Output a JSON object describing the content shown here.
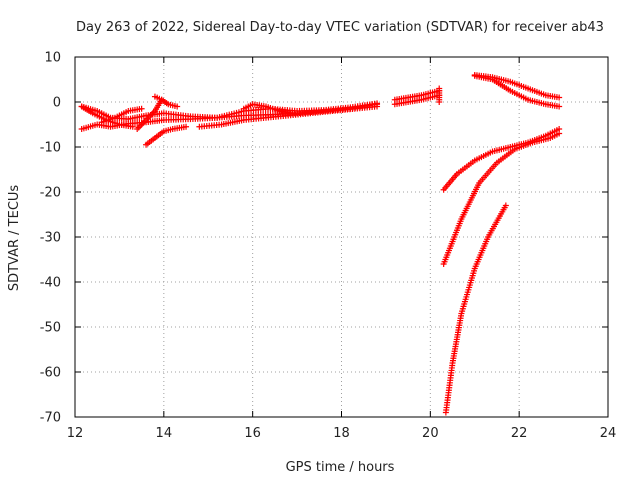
{
  "chart_data": {
    "type": "scatter",
    "title": "Day 263 of 2022, Sidereal Day-to-day VTEC variation (SDTVAR) for receiver ab43",
    "xlabel": "GPS time / hours",
    "ylabel": "SDTVAR / TECUs",
    "xlim": [
      12,
      24
    ],
    "ylim": [
      -70,
      10
    ],
    "xticks": [
      "12",
      "14",
      "16",
      "18",
      "20",
      "22",
      "24"
    ],
    "yticks": [
      "10",
      "0",
      "-10",
      "-20",
      "-30",
      "-40",
      "-50",
      "-60",
      "-70"
    ],
    "grid": true,
    "marker": "plus",
    "color": "#ff0000",
    "tracks": [
      {
        "x": [
          12.15,
          12.5,
          12.8,
          13.2,
          13.6,
          14.0,
          14.6,
          15.2,
          15.8,
          16.4,
          17.0,
          17.6,
          18.2,
          18.8
        ],
        "y": [
          -6.0,
          -5.0,
          -5.5,
          -4.8,
          -4.5,
          -4.0,
          -3.8,
          -3.5,
          -3.0,
          -2.8,
          -2.5,
          -2.0,
          -1.5,
          -0.5
        ]
      },
      {
        "x": [
          12.15,
          12.5,
          12.8,
          13.2,
          13.6,
          14.0,
          14.6,
          15.2,
          15.8,
          16.4,
          17.0,
          17.6,
          18.2,
          18.8
        ],
        "y": [
          -1.0,
          -2.0,
          -3.5,
          -3.8,
          -3.0,
          -2.5,
          -3.2,
          -3.5,
          -2.0,
          -1.5,
          -2.0,
          -1.8,
          -1.2,
          -0.3
        ]
      },
      {
        "x": [
          12.15,
          12.4,
          12.7,
          13.0,
          13.3
        ],
        "y": [
          -1.0,
          -2.5,
          -4.0,
          -5.0,
          -5.5
        ]
      },
      {
        "x": [
          12.6,
          12.9,
          13.2,
          13.5
        ],
        "y": [
          -4.5,
          -3.5,
          -2.0,
          -1.5
        ]
      },
      {
        "x": [
          13.4,
          13.6,
          13.8,
          13.95
        ],
        "y": [
          -6.0,
          -4.0,
          -2.0,
          0.5
        ]
      },
      {
        "x": [
          13.8,
          13.95,
          14.1,
          14.3
        ],
        "y": [
          1.2,
          0.5,
          -0.5,
          -1.0
        ]
      },
      {
        "x": [
          13.6,
          13.8,
          14.0,
          14.2,
          14.5
        ],
        "y": [
          -9.5,
          -8.0,
          -6.5,
          -6.0,
          -5.5
        ]
      },
      {
        "x": [
          14.8,
          15.3,
          15.8,
          16.3,
          16.8,
          17.3,
          17.8,
          18.3,
          18.8
        ],
        "y": [
          -5.5,
          -5.0,
          -4.0,
          -3.5,
          -3.0,
          -2.5,
          -2.0,
          -1.5,
          -1.0
        ]
      },
      {
        "x": [
          15.8,
          16.0,
          16.3,
          16.6,
          16.9
        ],
        "y": [
          -1.5,
          -0.5,
          -1.0,
          -2.0,
          -2.5
        ]
      },
      {
        "x": [
          19.2,
          19.5,
          19.8,
          20.0,
          20.2
        ],
        "y": [
          -0.5,
          0.0,
          0.5,
          1.0,
          1.5
        ]
      },
      {
        "x": [
          19.2,
          19.5,
          19.8,
          20.0,
          20.2
        ],
        "y": [
          0.5,
          1.0,
          1.5,
          2.0,
          2.5
        ]
      },
      {
        "x": [
          20.2,
          20.2
        ],
        "y": [
          0.0,
          3.0
        ]
      },
      {
        "x": [
          21.0,
          21.4,
          21.8,
          22.2,
          22.6,
          22.9
        ],
        "y": [
          6.0,
          5.5,
          4.5,
          3.0,
          1.5,
          1.0
        ]
      },
      {
        "x": [
          21.0,
          21.4,
          21.8,
          22.2,
          22.6,
          22.9
        ],
        "y": [
          5.8,
          5.0,
          2.5,
          0.5,
          -0.5,
          -1.0
        ]
      },
      {
        "x": [
          20.3,
          20.6,
          21.0,
          21.4,
          21.8,
          22.2,
          22.6,
          22.9
        ],
        "y": [
          -19.5,
          -16.0,
          -13.0,
          -11.0,
          -10.0,
          -9.0,
          -7.5,
          -6.0
        ]
      },
      {
        "x": [
          20.3,
          20.7,
          21.1,
          21.5,
          21.9,
          22.3,
          22.7,
          22.9
        ],
        "y": [
          -36.0,
          -26.0,
          -18.0,
          -13.5,
          -10.5,
          -9.0,
          -8.0,
          -7.0
        ]
      },
      {
        "x": [
          20.35,
          20.5,
          20.7,
          21.0,
          21.3,
          21.7
        ],
        "y": [
          -69.0,
          -58.0,
          -47.0,
          -37.0,
          -30.0,
          -23.0
        ]
      }
    ]
  }
}
